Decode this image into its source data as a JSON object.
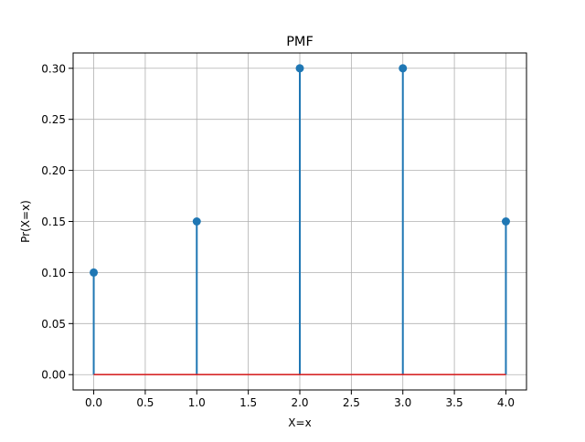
{
  "chart_data": {
    "type": "stem",
    "title": "PMF",
    "xlabel": "X=x",
    "ylabel": "Pr(X=x)",
    "x": [
      0,
      1,
      2,
      3,
      4
    ],
    "values": [
      0.1,
      0.15,
      0.3,
      0.3,
      0.15
    ],
    "xlim": [
      -0.2,
      4.2
    ],
    "ylim": [
      -0.015,
      0.315
    ],
    "xticks": [
      0.0,
      0.5,
      1.0,
      1.5,
      2.0,
      2.5,
      3.0,
      3.5,
      4.0
    ],
    "xtick_labels": [
      "0.0",
      "0.5",
      "1.0",
      "1.5",
      "2.0",
      "2.5",
      "3.0",
      "3.5",
      "4.0"
    ],
    "yticks": [
      0.0,
      0.05,
      0.1,
      0.15,
      0.2,
      0.25,
      0.3
    ],
    "ytick_labels": [
      "0.00",
      "0.05",
      "0.10",
      "0.15",
      "0.20",
      "0.25",
      "0.30"
    ],
    "grid": true,
    "baseline": 0,
    "colors": {
      "stem": "#1f77b4",
      "marker": "#1f77b4",
      "baseline": "#d62728",
      "grid": "#b0b0b0"
    }
  }
}
